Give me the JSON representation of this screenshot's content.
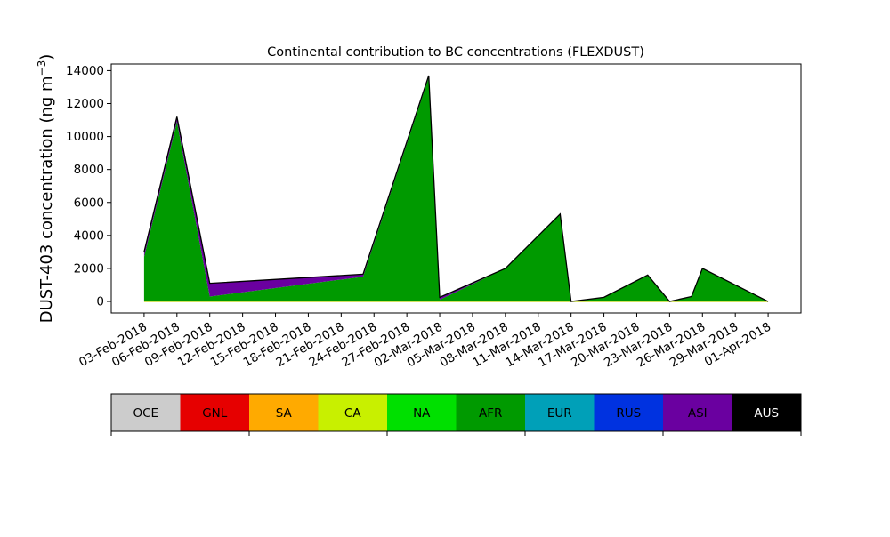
{
  "chart_data": {
    "type": "area",
    "title": "Continental contribution to BC concentrations (FLEXDUST)",
    "xlabel": "",
    "ylabel": "DUST-403 concentration (ng m",
    "ylabel_sup": "−3",
    "ylabel_close": ")",
    "ylim": [
      -700,
      14400
    ],
    "yticks": [
      0,
      2000,
      4000,
      6000,
      8000,
      10000,
      12000,
      14000
    ],
    "ytick_labels": [
      "0",
      "2000",
      "4000",
      "6000",
      "8000",
      "10000",
      "12000",
      "14000"
    ],
    "xlim": [
      "2018-01-31",
      "2018-04-04"
    ],
    "xticks": [
      "2018-02-03",
      "2018-02-06",
      "2018-02-09",
      "2018-02-12",
      "2018-02-15",
      "2018-02-18",
      "2018-02-21",
      "2018-02-24",
      "2018-02-27",
      "2018-03-02",
      "2018-03-05",
      "2018-03-08",
      "2018-03-11",
      "2018-03-14",
      "2018-03-17",
      "2018-03-20",
      "2018-03-23",
      "2018-03-26",
      "2018-03-29",
      "2018-04-01"
    ],
    "xtick_labels": [
      "03-Feb-2018",
      "06-Feb-2018",
      "09-Feb-2018",
      "12-Feb-2018",
      "15-Feb-2018",
      "18-Feb-2018",
      "21-Feb-2018",
      "24-Feb-2018",
      "27-Feb-2018",
      "02-Mar-2018",
      "05-Mar-2018",
      "08-Mar-2018",
      "11-Mar-2018",
      "14-Mar-2018",
      "17-Mar-2018",
      "20-Mar-2018",
      "23-Mar-2018",
      "26-Mar-2018",
      "29-Mar-2018",
      "01-Apr-2018"
    ],
    "grid": false,
    "x": [
      "2018-02-03",
      "2018-02-06",
      "2018-02-09",
      "2018-02-23",
      "2018-03-01",
      "2018-03-02",
      "2018-03-08",
      "2018-03-13",
      "2018-03-14",
      "2018-03-17",
      "2018-03-21",
      "2018-03-23",
      "2018-03-25",
      "2018-03-26",
      "2018-04-01"
    ],
    "series": [
      {
        "name": "AFR",
        "color": "#009a00",
        "values": [
          2700,
          10900,
          300,
          1500,
          13600,
          100,
          2000,
          5300,
          0,
          250,
          1600,
          0,
          300,
          2000,
          0
        ]
      },
      {
        "name": "ASI",
        "color": "#6a00a0",
        "values": [
          300,
          300,
          800,
          150,
          100,
          150,
          0,
          0,
          0,
          0,
          0,
          0,
          0,
          0,
          0
        ]
      }
    ],
    "other_series_color": "#b8d000",
    "colorbar": {
      "labels": [
        "OCE",
        "GNL",
        "SA",
        "CA",
        "NA",
        "AFR",
        "EUR",
        "RUS",
        "ASI",
        "AUS"
      ],
      "colors": [
        "#cccccc",
        "#e60000",
        "#ffaa00",
        "#c8f000",
        "#00e000",
        "#009a00",
        "#00a0b8",
        "#0032e0",
        "#6a00a0",
        "#000000"
      ],
      "text_colors": [
        "#000000",
        "#000000",
        "#000000",
        "#000000",
        "#000000",
        "#000000",
        "#000000",
        "#000000",
        "#000000",
        "#ffffff"
      ]
    }
  }
}
